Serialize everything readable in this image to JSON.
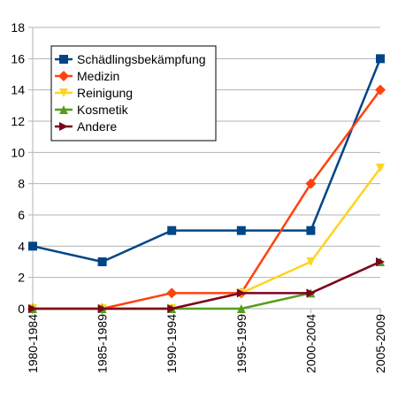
{
  "chart_data": {
    "type": "line",
    "title": "",
    "xlabel": "",
    "ylabel": "",
    "ylim": [
      0,
      18
    ],
    "y_ticks": [
      "0",
      "2",
      "4",
      "6",
      "8",
      "10",
      "12",
      "14",
      "16",
      "18"
    ],
    "categories": [
      "1980-1984",
      "1985-1989",
      "1990-1994",
      "1995-1999",
      "2000-2004",
      "2005-2009"
    ],
    "grid": {
      "horizontal": true,
      "vertical": false
    },
    "legend_position": "top-left",
    "series": [
      {
        "name": "Schädlingsbekämpfung",
        "color": "#004586",
        "marker": "square",
        "values": [
          4,
          3,
          5,
          5,
          5,
          16
        ]
      },
      {
        "name": "Medizin",
        "color": "#ff420e",
        "marker": "diamond",
        "values": [
          0,
          0,
          1,
          1,
          8,
          14
        ]
      },
      {
        "name": "Reinigung",
        "color": "#ffd320",
        "marker": "triangle-down",
        "values": [
          0,
          0,
          0,
          1,
          3,
          9
        ]
      },
      {
        "name": "Kosmetik",
        "color": "#579d1c",
        "marker": "triangle-up",
        "values": [
          0,
          0,
          0,
          0,
          1,
          3
        ]
      },
      {
        "name": "Andere",
        "color": "#7e0021",
        "marker": "triangle-right",
        "values": [
          0,
          0,
          0,
          1,
          1,
          3
        ]
      }
    ]
  }
}
